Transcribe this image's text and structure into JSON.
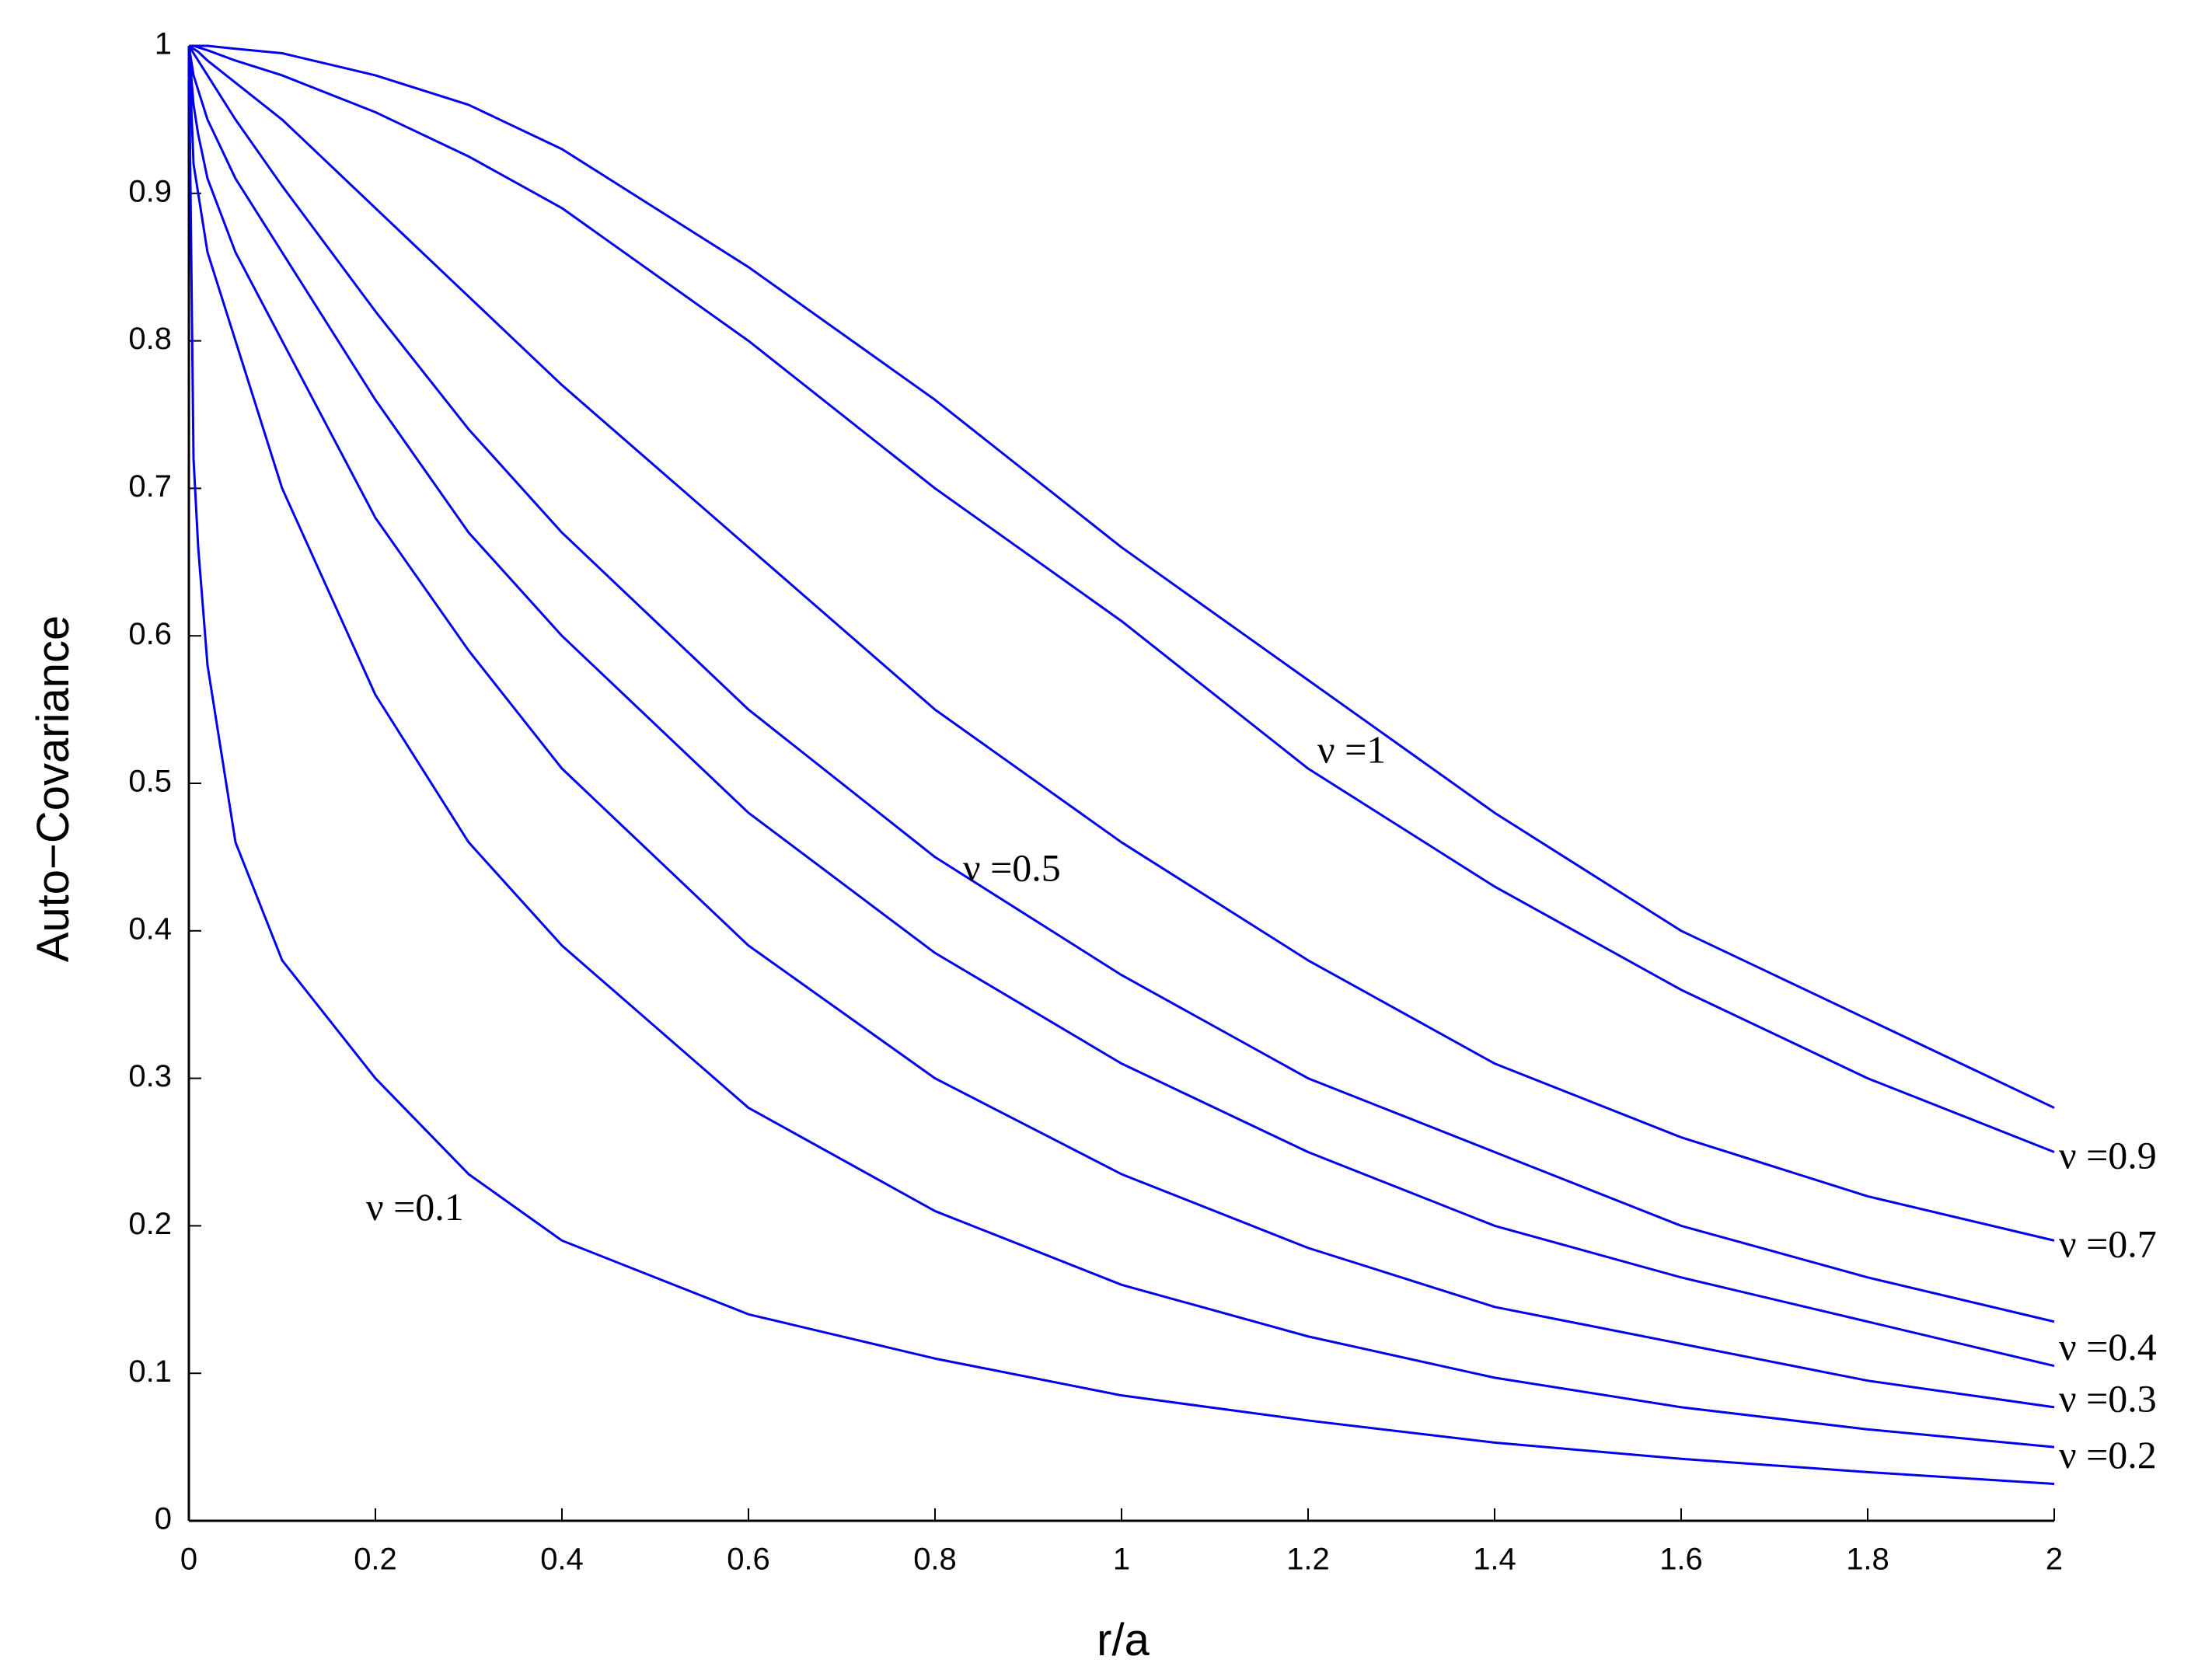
{
  "chart_data": {
    "type": "line",
    "xlabel": "r/a",
    "ylabel": "Auto−Covariance",
    "x": [
      0,
      0.005,
      0.01,
      0.02,
      0.05,
      0.1,
      0.2,
      0.3,
      0.4,
      0.6,
      0.8,
      1.0,
      1.2,
      1.4,
      1.6,
      1.8,
      2.0
    ],
    "series": [
      {
        "name": "ν =1",
        "color": "#0000ee",
        "values": [
          1,
          1,
          1,
          1,
          0.998,
          0.995,
          0.98,
          0.96,
          0.93,
          0.85,
          0.76,
          0.66,
          0.57,
          0.48,
          0.4,
          0.34,
          0.28
        ]
      },
      {
        "name": "ν =0.9",
        "color": "#0000ee",
        "values": [
          1,
          1,
          0.999,
          0.997,
          0.99,
          0.98,
          0.955,
          0.925,
          0.89,
          0.8,
          0.7,
          0.61,
          0.51,
          0.43,
          0.36,
          0.3,
          0.25
        ]
      },
      {
        "name": "ν =0.7",
        "color": "#0000ee",
        "values": [
          1,
          0.998,
          0.996,
          0.99,
          0.975,
          0.95,
          0.89,
          0.83,
          0.77,
          0.66,
          0.55,
          0.46,
          0.38,
          0.31,
          0.26,
          0.22,
          0.19
        ]
      },
      {
        "name": "ν =0.5",
        "color": "#0000ee",
        "values": [
          1,
          0.995,
          0.99,
          0.98,
          0.95,
          0.905,
          0.82,
          0.74,
          0.67,
          0.55,
          0.45,
          0.37,
          0.3,
          0.25,
          0.2,
          0.165,
          0.135
        ]
      },
      {
        "name": "ν =0.4",
        "color": "#0000ee",
        "values": [
          1,
          0.98,
          0.97,
          0.95,
          0.91,
          0.86,
          0.76,
          0.67,
          0.6,
          0.48,
          0.385,
          0.31,
          0.25,
          0.2,
          0.165,
          0.135,
          0.105
        ]
      },
      {
        "name": "ν =0.3",
        "color": "#0000ee",
        "values": [
          1,
          0.96,
          0.94,
          0.91,
          0.86,
          0.8,
          0.68,
          0.59,
          0.51,
          0.39,
          0.3,
          0.235,
          0.185,
          0.145,
          0.12,
          0.095,
          0.077
        ]
      },
      {
        "name": "ν =0.2",
        "color": "#0000ee",
        "values": [
          1,
          0.92,
          0.9,
          0.86,
          0.8,
          0.7,
          0.56,
          0.46,
          0.39,
          0.28,
          0.21,
          0.16,
          0.125,
          0.097,
          0.077,
          0.062,
          0.05
        ]
      },
      {
        "name": "ν =0.1",
        "color": "#0000ee",
        "values": [
          1,
          0.72,
          0.66,
          0.58,
          0.46,
          0.38,
          0.3,
          0.235,
          0.19,
          0.14,
          0.11,
          0.085,
          0.068,
          0.053,
          0.042,
          0.033,
          0.025
        ]
      }
    ],
    "xlim": [
      0,
      2
    ],
    "xticks": [
      0,
      0.2,
      0.4,
      0.6,
      0.8,
      1,
      1.2,
      1.4,
      1.6,
      1.8,
      2
    ],
    "ylim": [
      0,
      1
    ],
    "yticks": [
      0,
      0.1,
      0.2,
      0.3,
      0.4,
      0.5,
      0.6,
      0.7,
      0.8,
      0.9,
      1
    ],
    "grid": false
  }
}
